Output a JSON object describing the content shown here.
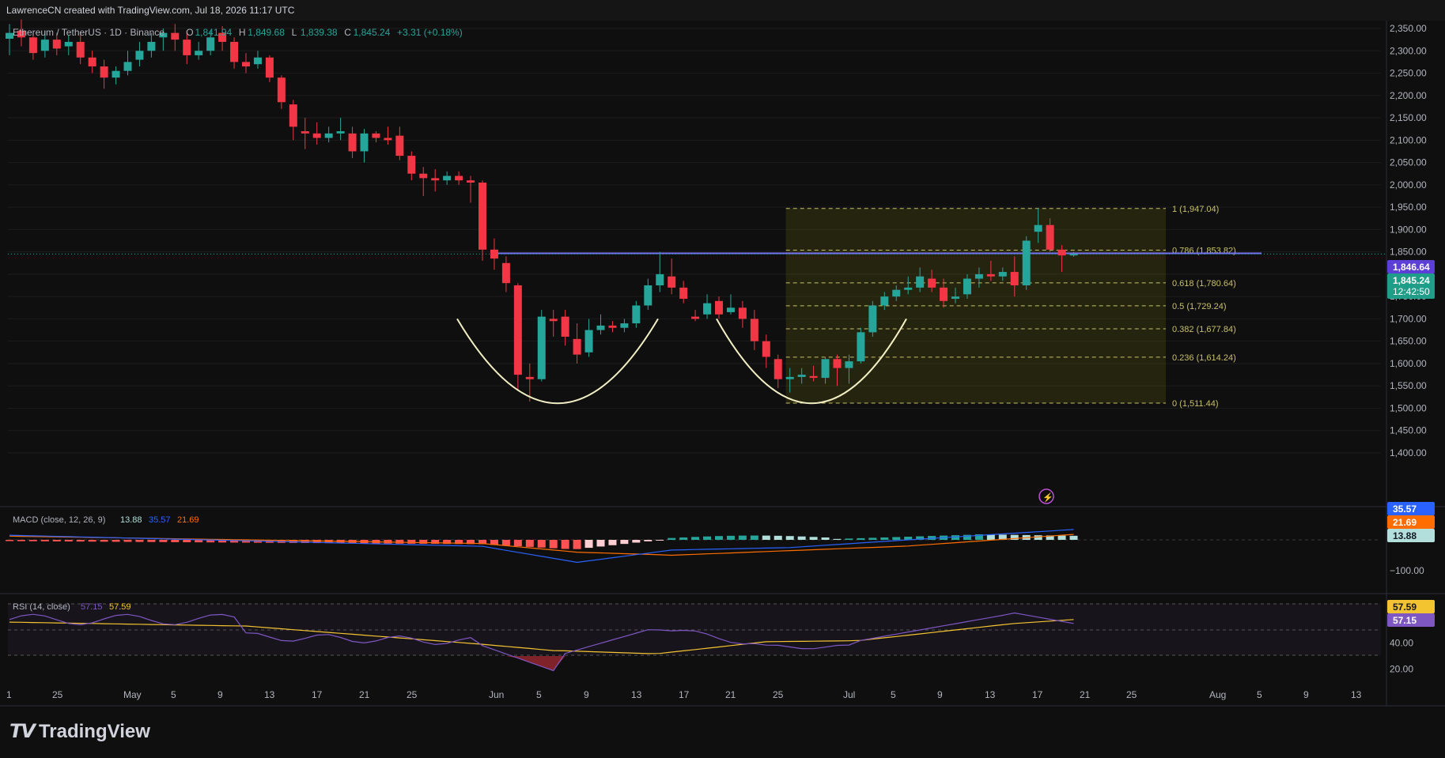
{
  "header": {
    "credit": "LawrenceCN created with TradingView.com, Jul 18, 2026 11:17 UTC",
    "symbol": "Ethereum / TetherUS · 1D · Binance",
    "o_label": "O",
    "o_val": "1,841.94",
    "h_label": "H",
    "h_val": "1,849.68",
    "l_label": "L",
    "l_val": "1,839.38",
    "c_label": "C",
    "c_val": "1,845.24",
    "change": "+3.31 (+0.18%)"
  },
  "brand": "TradingView",
  "colors": {
    "up": "#26a69a",
    "down": "#f23645",
    "bg": "#0f0f0f",
    "fib": "#c8c06a",
    "resistance": "#7b6cf6",
    "macd": "#2962ff",
    "signal": "#ff6d00",
    "rsi": "#7e57c2",
    "rsi_ma": "#f4c430"
  },
  "chart_data": [
    {
      "type": "candlestick",
      "title": "Ethereum / TetherUS · 1D · Binance",
      "ylim": [
        1400,
        2350
      ],
      "y_ticks": [
        "2,350.00",
        "2,300.00",
        "2,250.00",
        "2,200.00",
        "2,150.00",
        "2,100.00",
        "2,050.00",
        "2,000.00",
        "1,950.00",
        "1,900.00",
        "1,850.00",
        "1,800.00",
        "1,750.00",
        "1,700.00",
        "1,650.00",
        "1,600.00",
        "1,550.00",
        "1,500.00",
        "1,450.00",
        "1,400.00"
      ],
      "x_ticks": [
        "1",
        "25",
        "May",
        "5",
        "9",
        "13",
        "17",
        "21",
        "25",
        "Jun",
        "5",
        "9",
        "13",
        "17",
        "21",
        "25",
        "Jul",
        "5",
        "9",
        "13",
        "17",
        "21",
        "25",
        "Aug",
        "5",
        "9",
        "13"
      ],
      "candles": [
        {
          "o": 2327,
          "h": 2360,
          "l": 2290,
          "c": 2340
        },
        {
          "o": 2345,
          "h": 2370,
          "l": 2310,
          "c": 2330
        },
        {
          "o": 2330,
          "h": 2340,
          "l": 2280,
          "c": 2295
        },
        {
          "o": 2300,
          "h": 2345,
          "l": 2285,
          "c": 2325
        },
        {
          "o": 2325,
          "h": 2340,
          "l": 2290,
          "c": 2305
        },
        {
          "o": 2310,
          "h": 2335,
          "l": 2290,
          "c": 2320
        },
        {
          "o": 2320,
          "h": 2340,
          "l": 2270,
          "c": 2285
        },
        {
          "o": 2285,
          "h": 2300,
          "l": 2250,
          "c": 2265
        },
        {
          "o": 2265,
          "h": 2280,
          "l": 2215,
          "c": 2240
        },
        {
          "o": 2240,
          "h": 2265,
          "l": 2225,
          "c": 2255
        },
        {
          "o": 2255,
          "h": 2300,
          "l": 2245,
          "c": 2275
        },
        {
          "o": 2280,
          "h": 2320,
          "l": 2265,
          "c": 2300
        },
        {
          "o": 2300,
          "h": 2340,
          "l": 2285,
          "c": 2320
        },
        {
          "o": 2330,
          "h": 2350,
          "l": 2300,
          "c": 2340
        },
        {
          "o": 2340,
          "h": 2360,
          "l": 2300,
          "c": 2325
        },
        {
          "o": 2325,
          "h": 2345,
          "l": 2270,
          "c": 2290
        },
        {
          "o": 2290,
          "h": 2320,
          "l": 2280,
          "c": 2300
        },
        {
          "o": 2300,
          "h": 2345,
          "l": 2290,
          "c": 2330
        },
        {
          "o": 2340,
          "h": 2355,
          "l": 2300,
          "c": 2320
        },
        {
          "o": 2320,
          "h": 2330,
          "l": 2260,
          "c": 2275
        },
        {
          "o": 2275,
          "h": 2295,
          "l": 2250,
          "c": 2265
        },
        {
          "o": 2270,
          "h": 2300,
          "l": 2260,
          "c": 2285
        },
        {
          "o": 2285,
          "h": 2290,
          "l": 2230,
          "c": 2240
        },
        {
          "o": 2240,
          "h": 2245,
          "l": 2170,
          "c": 2185
        },
        {
          "o": 2180,
          "h": 2190,
          "l": 2100,
          "c": 2130
        },
        {
          "o": 2120,
          "h": 2150,
          "l": 2080,
          "c": 2115
        },
        {
          "o": 2115,
          "h": 2140,
          "l": 2090,
          "c": 2105
        },
        {
          "o": 2105,
          "h": 2130,
          "l": 2095,
          "c": 2115
        },
        {
          "o": 2115,
          "h": 2150,
          "l": 2100,
          "c": 2120
        },
        {
          "o": 2115,
          "h": 2130,
          "l": 2060,
          "c": 2075
        },
        {
          "o": 2075,
          "h": 2125,
          "l": 2050,
          "c": 2115
        },
        {
          "o": 2115,
          "h": 2120,
          "l": 2095,
          "c": 2105
        },
        {
          "o": 2105,
          "h": 2130,
          "l": 2090,
          "c": 2100
        },
        {
          "o": 2110,
          "h": 2130,
          "l": 2055,
          "c": 2065
        },
        {
          "o": 2065,
          "h": 2075,
          "l": 2010,
          "c": 2025
        },
        {
          "o": 2025,
          "h": 2040,
          "l": 1975,
          "c": 2015
        },
        {
          "o": 2015,
          "h": 2035,
          "l": 1985,
          "c": 2010
        },
        {
          "o": 2010,
          "h": 2030,
          "l": 2000,
          "c": 2020
        },
        {
          "o": 2020,
          "h": 2030,
          "l": 2000,
          "c": 2010
        },
        {
          "o": 2010,
          "h": 2020,
          "l": 1960,
          "c": 2005
        },
        {
          "o": 2005,
          "h": 2010,
          "l": 1830,
          "c": 1855
        },
        {
          "o": 1855,
          "h": 1880,
          "l": 1810,
          "c": 1835
        },
        {
          "o": 1825,
          "h": 1840,
          "l": 1760,
          "c": 1780
        },
        {
          "o": 1775,
          "h": 1780,
          "l": 1540,
          "c": 1575
        },
        {
          "o": 1570,
          "h": 1600,
          "l": 1515,
          "c": 1565
        },
        {
          "o": 1565,
          "h": 1720,
          "l": 1560,
          "c": 1705
        },
        {
          "o": 1700,
          "h": 1720,
          "l": 1660,
          "c": 1695
        },
        {
          "o": 1705,
          "h": 1720,
          "l": 1640,
          "c": 1660
        },
        {
          "o": 1655,
          "h": 1690,
          "l": 1600,
          "c": 1620
        },
        {
          "o": 1625,
          "h": 1700,
          "l": 1615,
          "c": 1675
        },
        {
          "o": 1675,
          "h": 1710,
          "l": 1665,
          "c": 1685
        },
        {
          "o": 1685,
          "h": 1695,
          "l": 1670,
          "c": 1680
        },
        {
          "o": 1680,
          "h": 1700,
          "l": 1670,
          "c": 1690
        },
        {
          "o": 1690,
          "h": 1740,
          "l": 1680,
          "c": 1730
        },
        {
          "o": 1730,
          "h": 1790,
          "l": 1720,
          "c": 1775
        },
        {
          "o": 1775,
          "h": 1850,
          "l": 1760,
          "c": 1800
        },
        {
          "o": 1795,
          "h": 1835,
          "l": 1755,
          "c": 1770
        },
        {
          "o": 1770,
          "h": 1785,
          "l": 1735,
          "c": 1745
        },
        {
          "o": 1705,
          "h": 1720,
          "l": 1695,
          "c": 1700
        },
        {
          "o": 1710,
          "h": 1755,
          "l": 1700,
          "c": 1735
        },
        {
          "o": 1740,
          "h": 1750,
          "l": 1700,
          "c": 1710
        },
        {
          "o": 1715,
          "h": 1755,
          "l": 1710,
          "c": 1725
        },
        {
          "o": 1725,
          "h": 1740,
          "l": 1680,
          "c": 1700
        },
        {
          "o": 1700,
          "h": 1720,
          "l": 1630,
          "c": 1650
        },
        {
          "o": 1650,
          "h": 1665,
          "l": 1590,
          "c": 1615
        },
        {
          "o": 1610,
          "h": 1620,
          "l": 1545,
          "c": 1565
        },
        {
          "o": 1565,
          "h": 1590,
          "l": 1535,
          "c": 1570
        },
        {
          "o": 1570,
          "h": 1590,
          "l": 1555,
          "c": 1575
        },
        {
          "o": 1572,
          "h": 1595,
          "l": 1560,
          "c": 1568
        },
        {
          "o": 1568,
          "h": 1615,
          "l": 1555,
          "c": 1610
        },
        {
          "o": 1610,
          "h": 1620,
          "l": 1550,
          "c": 1590
        },
        {
          "o": 1590,
          "h": 1620,
          "l": 1555,
          "c": 1605
        },
        {
          "o": 1605,
          "h": 1680,
          "l": 1600,
          "c": 1670
        },
        {
          "o": 1670,
          "h": 1740,
          "l": 1660,
          "c": 1730
        },
        {
          "o": 1730,
          "h": 1760,
          "l": 1720,
          "c": 1750
        },
        {
          "o": 1750,
          "h": 1775,
          "l": 1740,
          "c": 1765
        },
        {
          "o": 1765,
          "h": 1795,
          "l": 1755,
          "c": 1770
        },
        {
          "o": 1770,
          "h": 1815,
          "l": 1760,
          "c": 1795
        },
        {
          "o": 1790,
          "h": 1810,
          "l": 1760,
          "c": 1770
        },
        {
          "o": 1770,
          "h": 1790,
          "l": 1725,
          "c": 1740
        },
        {
          "o": 1745,
          "h": 1770,
          "l": 1735,
          "c": 1750
        },
        {
          "o": 1755,
          "h": 1800,
          "l": 1745,
          "c": 1790
        },
        {
          "o": 1790,
          "h": 1815,
          "l": 1770,
          "c": 1800
        },
        {
          "o": 1800,
          "h": 1830,
          "l": 1785,
          "c": 1795
        },
        {
          "o": 1795,
          "h": 1815,
          "l": 1785,
          "c": 1805
        },
        {
          "o": 1805,
          "h": 1840,
          "l": 1750,
          "c": 1775
        },
        {
          "o": 1775,
          "h": 1885,
          "l": 1765,
          "c": 1875
        },
        {
          "o": 1895,
          "h": 1947,
          "l": 1870,
          "c": 1910
        },
        {
          "o": 1910,
          "h": 1925,
          "l": 1850,
          "c": 1855
        },
        {
          "o": 1855,
          "h": 1865,
          "l": 1805,
          "c": 1842
        },
        {
          "o": 1842,
          "h": 1850,
          "l": 1839,
          "c": 1845
        }
      ],
      "current_price": "1,845.24",
      "countdown": "12:42:50",
      "resistance_price": "1,846.64",
      "resistance_value": 1846.64,
      "fib": {
        "high": 1947.04,
        "low": 1511.44,
        "levels": [
          {
            "value": 1947.04,
            "label": "1 (1,947.04)"
          },
          {
            "value": 1853.82,
            "label": "0.786 (1,853.82)"
          },
          {
            "value": 1780.64,
            "label": "0.618 (1,780.64)"
          },
          {
            "value": 1729.24,
            "label": "0.5 (1,729.24)"
          },
          {
            "value": 1677.84,
            "label": "0.382 (1,677.84)"
          },
          {
            "value": 1614.24,
            "label": "0.236 (1,614.24)"
          },
          {
            "value": 1511.44,
            "label": "0 (1,511.44)"
          }
        ]
      },
      "cup_bottoms": [
        1511,
        1511
      ]
    },
    {
      "type": "macd",
      "title": "MACD (close, 12, 26, 9)",
      "values": {
        "histogram": "13.88",
        "macd": "35.57",
        "signal": "21.69"
      },
      "ylim": [
        -130,
        70
      ],
      "y_ticks": [
        "−100.00",
        "0.00"
      ],
      "badges": [
        "35.57",
        "21.69",
        "13.88"
      ]
    },
    {
      "type": "rsi",
      "title": "RSI (14, close)",
      "values": {
        "rsi": "57.15",
        "ma": "57.59"
      },
      "ylim": [
        10,
        80
      ],
      "y_ticks": [
        "40.00",
        "20.00"
      ],
      "badges": [
        "57.59",
        "57.15"
      ]
    }
  ]
}
